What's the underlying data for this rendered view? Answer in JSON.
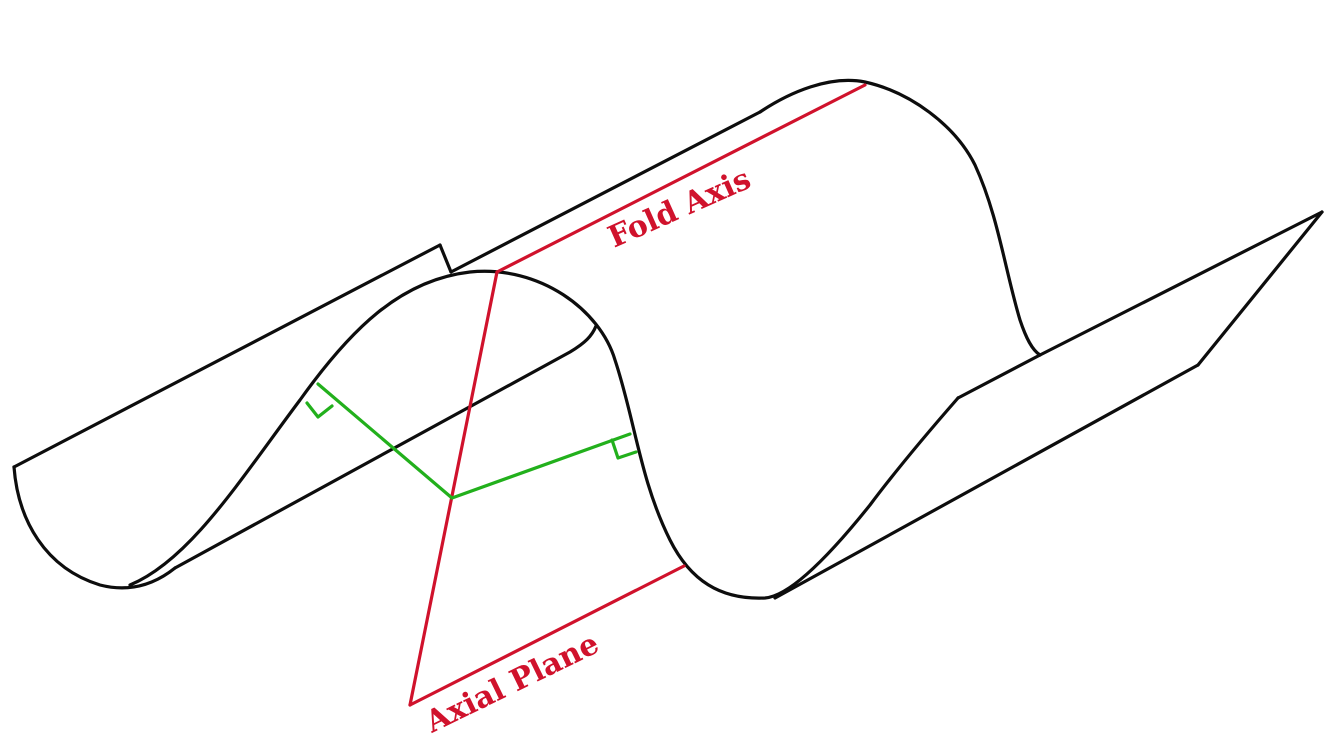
{
  "labels": {
    "fold_axis": "Fold Axis",
    "axial_plane": "Axial Plane"
  },
  "colors": {
    "outline": "#0d0d0d",
    "axis_and_plane": "#d0122c",
    "perpendicular_markers": "#22b01c",
    "background": "#ffffff"
  }
}
